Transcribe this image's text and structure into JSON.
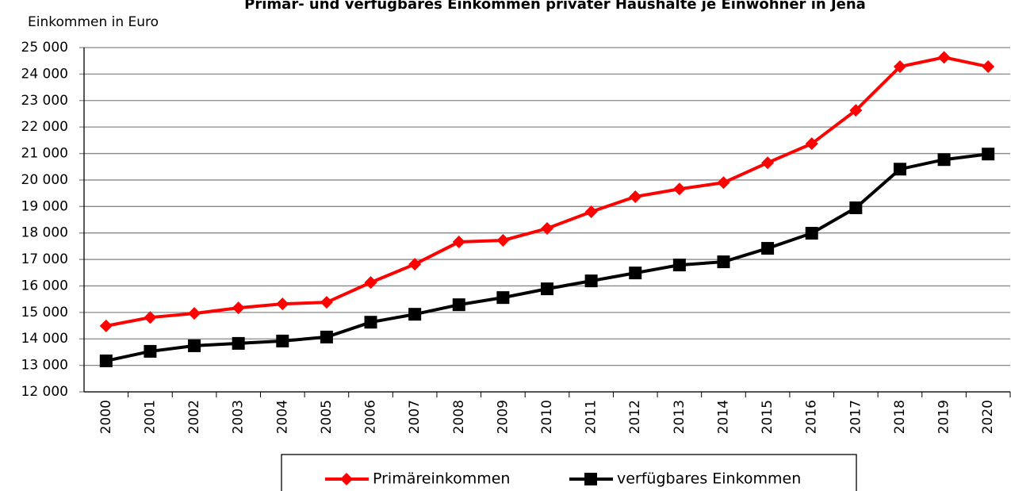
{
  "chart_data": {
    "type": "line",
    "title": "Primär- und verfügbares Einkommen privater Haushalte je Einwohner in Jena",
    "y_label": "Einkommen in Euro",
    "categories": [
      "2000",
      "2001",
      "2002",
      "2003",
      "2004",
      "2005",
      "2006",
      "2007",
      "2008",
      "2009",
      "2010",
      "2011",
      "2012",
      "2013",
      "2014",
      "2015",
      "2016",
      "2017",
      "2018",
      "2019",
      "2020"
    ],
    "series": [
      {
        "name": "Primäreinkommen",
        "color": "#ff0000",
        "marker": "diamond",
        "values": [
          14490,
          14810,
          14960,
          15170,
          15320,
          15380,
          16130,
          16820,
          17660,
          17720,
          18170,
          18800,
          19370,
          19660,
          19900,
          20650,
          21370,
          22630,
          24280,
          24630,
          24280
        ]
      },
      {
        "name": "verfügbares Einkommen",
        "color": "#000000",
        "marker": "square",
        "values": [
          13170,
          13530,
          13740,
          13830,
          13920,
          14070,
          14630,
          14930,
          15290,
          15560,
          15890,
          16190,
          16490,
          16790,
          16910,
          17420,
          17990,
          18950,
          20410,
          20770,
          20980
        ]
      }
    ],
    "ylim": [
      12000,
      25000
    ],
    "yticks": [
      {
        "value": 12000,
        "label": "12 000"
      },
      {
        "value": 13000,
        "label": "13 000"
      },
      {
        "value": 14000,
        "label": "14 000"
      },
      {
        "value": 15000,
        "label": "15 000"
      },
      {
        "value": 16000,
        "label": "16 000"
      },
      {
        "value": 17000,
        "label": "17 000"
      },
      {
        "value": 18000,
        "label": "18 000"
      },
      {
        "value": 19000,
        "label": "19 000"
      },
      {
        "value": 20000,
        "label": "20 000"
      },
      {
        "value": 21000,
        "label": "21 000"
      },
      {
        "value": 22000,
        "label": "22 000"
      },
      {
        "value": 23000,
        "label": "23 000"
      },
      {
        "value": 24000,
        "label": "24 000"
      },
      {
        "value": 25000,
        "label": "25 000"
      }
    ],
    "grid": true,
    "legend": "bottom"
  }
}
